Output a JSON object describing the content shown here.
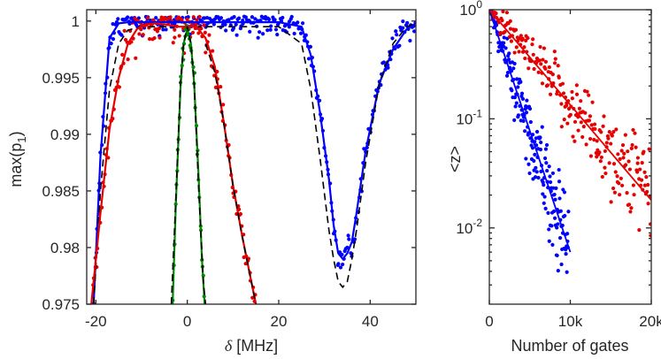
{
  "chart_data": [
    {
      "type": "line",
      "panel": "left",
      "xlabel_symbol": "δ",
      "xlabel_unit": " [MHz]",
      "ylabel": "max(p",
      "ylabel_sub": "1",
      "ylabel_close": ")",
      "xlim": [
        -22,
        50
      ],
      "ylim": [
        0.975,
        1.001
      ],
      "xticks": [
        -20,
        0,
        20,
        40
      ],
      "xtick_labels": [
        "-20",
        "0",
        "20",
        "40"
      ],
      "yticks": [
        0.975,
        0.98,
        0.985,
        0.99,
        0.995,
        1.0
      ],
      "ytick_labels": [
        "0.975",
        "0.98",
        "0.985",
        "0.99",
        "0.995",
        "1"
      ],
      "series": [
        {
          "name": "blue theory",
          "color": "#0000ff",
          "style": "solid",
          "x": [
            -20.5,
            -19,
            -17,
            -15,
            -13,
            -10,
            -5,
            0,
            5,
            10,
            15,
            20,
            25,
            27,
            29,
            31,
            32,
            33,
            34,
            35,
            36,
            37,
            39,
            42,
            45,
            48,
            50
          ],
          "y": [
            0.975,
            0.988,
            0.9985,
            0.9998,
            0.9999,
            0.9999,
            0.9999,
            0.9999,
            0.9999,
            0.9999,
            0.9999,
            0.9999,
            0.9995,
            0.997,
            0.992,
            0.986,
            0.982,
            0.9795,
            0.979,
            0.9795,
            0.9805,
            0.983,
            0.9885,
            0.9945,
            0.9975,
            0.9993,
            0.9998
          ]
        },
        {
          "name": "black dashed",
          "color": "#000000",
          "style": "dashed",
          "x": [
            -20.5,
            -19,
            -17,
            -15,
            -13,
            -10,
            -5,
            0,
            5,
            10,
            15,
            20,
            25,
            27,
            29,
            31,
            32,
            33,
            34,
            35,
            36,
            37,
            39,
            42,
            45,
            48,
            50
          ],
          "y": [
            0.975,
            0.985,
            0.994,
            0.998,
            0.9992,
            0.9995,
            0.9995,
            0.9995,
            0.9995,
            0.9995,
            0.9995,
            0.9995,
            0.998,
            0.994,
            0.988,
            0.9815,
            0.979,
            0.977,
            0.9765,
            0.977,
            0.979,
            0.9815,
            0.9875,
            0.9945,
            0.998,
            0.9995,
            0.9998
          ]
        },
        {
          "name": "red theory",
          "color": "#e60000",
          "style": "solid",
          "x": [
            -21,
            -19,
            -17,
            -15,
            -13,
            -11,
            -9,
            -7,
            -5,
            -2,
            0,
            2,
            4,
            6,
            8,
            10,
            12,
            14,
            15
          ],
          "y": [
            0.975,
            0.983,
            0.9905,
            0.995,
            0.998,
            0.9993,
            0.9997,
            0.9998,
            0.9997,
            0.9995,
            0.9995,
            0.9995,
            0.9985,
            0.996,
            0.991,
            0.9855,
            0.981,
            0.977,
            0.975
          ]
        },
        {
          "name": "black dashed red match",
          "color": "#000000",
          "style": "dashed",
          "x": [
            4,
            6,
            8,
            10,
            12,
            14,
            15
          ],
          "y": [
            0.998,
            0.9955,
            0.991,
            0.9855,
            0.981,
            0.977,
            0.975
          ]
        },
        {
          "name": "green theory",
          "color": "#008800",
          "style": "solid",
          "x": [
            -3.2,
            -2.5,
            -1.5,
            -0.8,
            0,
            0.8,
            1.5,
            2.5,
            3.2,
            3.8
          ],
          "y": [
            0.975,
            0.984,
            0.994,
            0.998,
            0.9993,
            0.998,
            0.9945,
            0.986,
            0.979,
            0.975
          ]
        },
        {
          "name": "black dashed green match",
          "color": "#000000",
          "style": "dashed",
          "x": [
            -3.5,
            -2.5,
            -1.5,
            -0.8,
            0,
            0.8,
            1.5,
            2.5,
            3.5,
            4
          ],
          "y": [
            0.975,
            0.9845,
            0.9945,
            0.998,
            0.9995,
            0.998,
            0.9945,
            0.985,
            0.977,
            0.975
          ]
        }
      ]
    },
    {
      "type": "scatter",
      "panel": "right",
      "xlabel": "Number of gates",
      "ylabel": "<z>",
      "yscale": "log",
      "xlim": [
        0,
        20000
      ],
      "ylim": [
        0.002,
        1
      ],
      "xticks": [
        0,
        10000,
        20000
      ],
      "xtick_labels": [
        "0",
        "10k",
        "20k"
      ],
      "yticks": [
        0.01,
        0.1,
        1
      ],
      "ytick_labels": [
        {
          "base": "10",
          "exp": "-2"
        },
        {
          "base": "10",
          "exp": "-1"
        },
        {
          "base": "10",
          "exp": "0"
        }
      ],
      "series": [
        {
          "name": "blue fit",
          "color": "#0000ff",
          "style": "line",
          "x": [
            0,
            10000
          ],
          "y": [
            1.0,
            0.006
          ]
        },
        {
          "name": "red fit",
          "color": "#e60000",
          "style": "line",
          "x": [
            0,
            20000
          ],
          "y": [
            1.0,
            0.018
          ]
        },
        {
          "name": "blue data",
          "color": "#0000ff",
          "style": "dots",
          "decay_per_kgate": 0.51,
          "x_max": 9800,
          "count": 190
        },
        {
          "name": "red data",
          "color": "#e60000",
          "style": "dots",
          "decay_per_kgate": 0.2,
          "x_max": 20000,
          "count": 230
        }
      ]
    }
  ]
}
